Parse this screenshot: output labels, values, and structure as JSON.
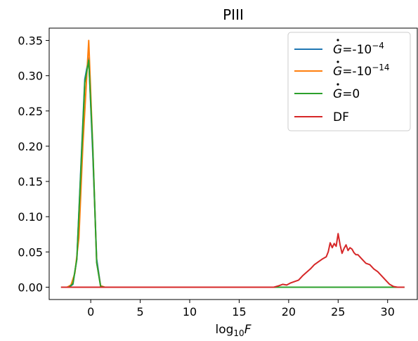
{
  "chart_data": {
    "type": "line",
    "title": "PIII",
    "xlabel": "log10F",
    "xlabel_parts": {
      "base": "log",
      "sub": "10",
      "var": "F"
    },
    "ylabel": "",
    "xlim": [
      -4.2,
      33.0
    ],
    "ylim": [
      -0.0175,
      0.3675
    ],
    "xticks": [
      0,
      5,
      10,
      15,
      20,
      25,
      30
    ],
    "xtick_labels": [
      "0",
      "5",
      "10",
      "15",
      "20",
      "25",
      "30"
    ],
    "yticks": [
      0.0,
      0.05,
      0.1,
      0.15,
      0.2,
      0.25,
      0.3,
      0.35
    ],
    "ytick_labels": [
      "0.00",
      "0.05",
      "0.10",
      "0.15",
      "0.20",
      "0.25",
      "0.30",
      "0.35"
    ],
    "grid": false,
    "legend_position": "top-right",
    "series": [
      {
        "name": "Ġ=-10⁻⁴",
        "legend_parts": {
          "var": "G",
          "eq": "=-10",
          "sup": "−4"
        },
        "color": "#1f77b4",
        "x": [
          -3,
          -2.2,
          -1.8,
          -1.4,
          -1.0,
          -0.6,
          -0.2,
          0.2,
          0.6,
          1.0,
          1.4,
          5,
          10,
          15,
          20,
          25,
          30,
          31.7
        ],
        "y": [
          0,
          0,
          0.004,
          0.04,
          0.17,
          0.295,
          0.325,
          0.19,
          0.04,
          0.002,
          0,
          0,
          0,
          0,
          0,
          0,
          0,
          0
        ]
      },
      {
        "name": "Ġ=-10⁻¹⁴",
        "legend_parts": {
          "var": "G",
          "eq": "=-10",
          "sup": "−14"
        },
        "color": "#ff7f0e",
        "x": [
          -3,
          -2.4,
          -2.0,
          -1.6,
          -1.2,
          -0.8,
          -0.4,
          -0.2,
          0.2,
          0.6,
          1.0,
          1.4,
          5,
          10,
          15,
          20,
          25,
          30,
          31.7
        ],
        "y": [
          0,
          0,
          0.003,
          0.02,
          0.07,
          0.2,
          0.3,
          0.35,
          0.2,
          0.035,
          0.002,
          0,
          0,
          0,
          0,
          0,
          0,
          0,
          0
        ]
      },
      {
        "name": "Ġ=0",
        "legend_parts": {
          "var": "G",
          "eq": "=0",
          "sup": ""
        },
        "color": "#2ca02c",
        "x": [
          -3,
          -2.2,
          -1.8,
          -1.4,
          -1.0,
          -0.6,
          -0.2,
          0.2,
          0.6,
          1.0,
          1.4,
          5,
          10,
          15,
          20,
          25,
          30,
          31.7
        ],
        "y": [
          0,
          0,
          0.005,
          0.04,
          0.165,
          0.29,
          0.322,
          0.2,
          0.035,
          0.001,
          0,
          0,
          0,
          0,
          0,
          0,
          0,
          0
        ]
      },
      {
        "name": "DF",
        "legend_parts": {
          "var": "",
          "eq": "DF",
          "sup": ""
        },
        "color": "#d62728",
        "x": [
          -3,
          5,
          10,
          15,
          18.5,
          19.0,
          19.4,
          19.8,
          20.2,
          20.6,
          21.0,
          21.4,
          21.8,
          22.2,
          22.6,
          23.0,
          23.4,
          23.8,
          24.0,
          24.2,
          24.4,
          24.6,
          24.8,
          25.0,
          25.2,
          25.4,
          25.6,
          25.8,
          26.0,
          26.2,
          26.4,
          26.6,
          26.8,
          27.0,
          27.4,
          27.8,
          28.2,
          28.6,
          29.0,
          29.4,
          29.8,
          30.2,
          30.6,
          31.0,
          31.7
        ],
        "y": [
          0,
          0,
          0,
          0,
          0,
          0.002,
          0.004,
          0.003,
          0.006,
          0.008,
          0.01,
          0.016,
          0.021,
          0.026,
          0.032,
          0.036,
          0.04,
          0.043,
          0.05,
          0.063,
          0.056,
          0.062,
          0.058,
          0.076,
          0.06,
          0.048,
          0.055,
          0.06,
          0.052,
          0.056,
          0.054,
          0.049,
          0.046,
          0.046,
          0.04,
          0.034,
          0.032,
          0.026,
          0.022,
          0.016,
          0.01,
          0.004,
          0.001,
          0,
          0
        ]
      }
    ]
  }
}
